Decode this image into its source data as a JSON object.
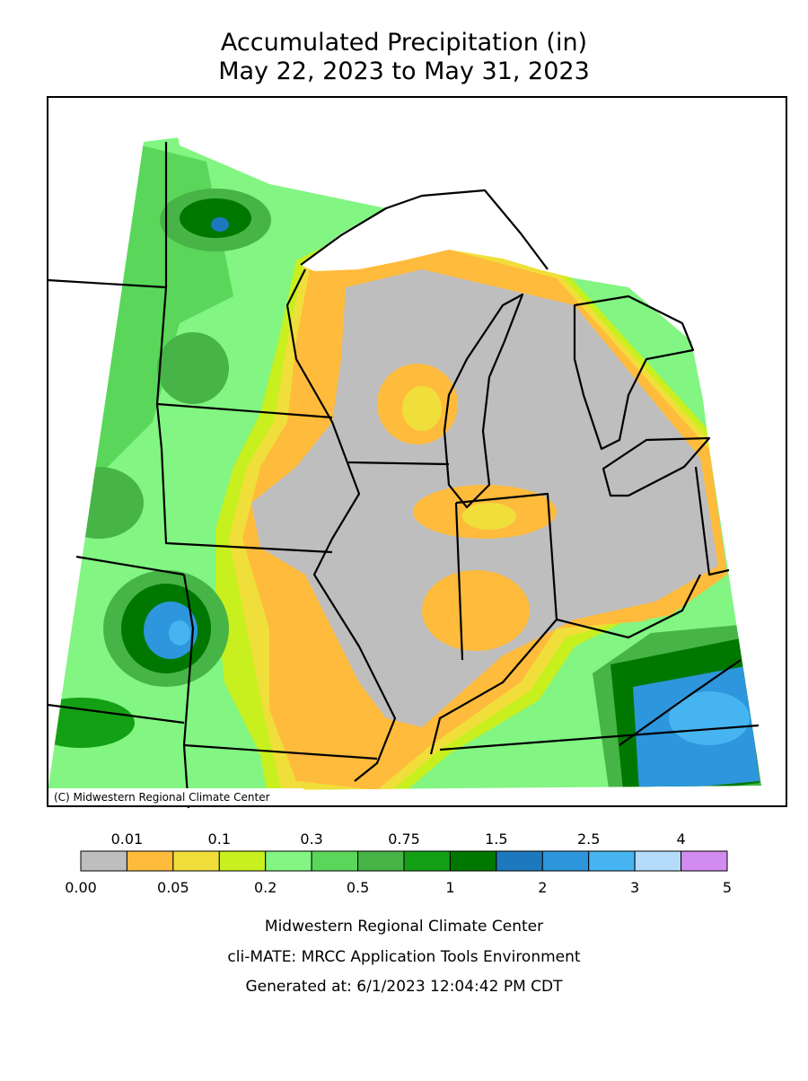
{
  "title": [
    "Accumulated Precipitation (in)",
    "May 22, 2023 to May 31, 2023"
  ],
  "copyright": "(C) Midwestern Regional Climate Center",
  "legend": {
    "colors": [
      "#bebebe",
      "#ffbb3c",
      "#f0df3a",
      "#c8f01e",
      "#82f582",
      "#5ad75a",
      "#46b446",
      "#14a014",
      "#007800",
      "#1e78be",
      "#2d96dc",
      "#46b4f0",
      "#b4dcfa",
      "#d28cf0"
    ],
    "upper_labels": [
      "0.01",
      "0.1",
      "0.3",
      "0.75",
      "1.5",
      "2.5",
      "4"
    ],
    "lower_labels": [
      "0.00",
      "0.05",
      "0.2",
      "0.5",
      "1",
      "2",
      "3",
      "5"
    ]
  },
  "footer": [
    "Midwestern Regional Climate Center",
    "cli-MATE: MRCC Application Tools Environment",
    "Generated at: 6/1/2023 12:04:42 PM CDT"
  ]
}
